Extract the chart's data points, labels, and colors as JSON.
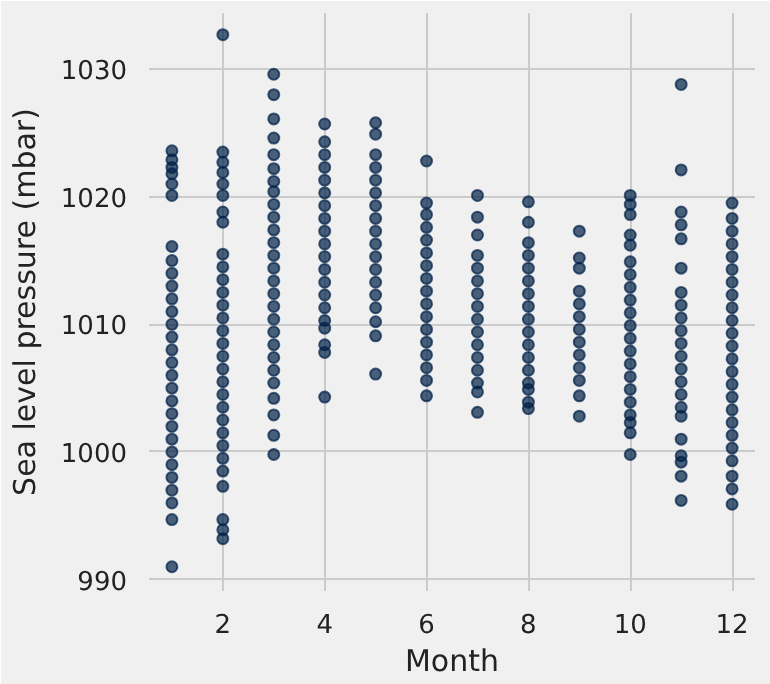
{
  "chart_data": {
    "type": "scatter",
    "xlabel": "Month",
    "ylabel": "Sea level pressure (mbar)",
    "xlim": [
      0.55,
      12.45
    ],
    "xticks": [
      2,
      4,
      6,
      8,
      10,
      12
    ],
    "ylim": [
      989.1,
      1034.4
    ],
    "yticks": [
      990,
      1000,
      1010,
      1020,
      1030
    ],
    "grid": true,
    "marker": "circle",
    "series": [
      {
        "color": "#002147",
        "x": [
          1,
          1,
          1,
          1,
          1,
          1,
          1,
          1,
          1,
          1,
          1,
          1,
          1,
          1,
          1,
          1,
          1,
          1,
          1,
          1,
          1,
          1,
          1,
          1,
          1,
          1,
          1,
          1,
          1
        ],
        "values": [
          1023.6,
          1022.9,
          1022.3,
          1021.8,
          1021.0,
          1020.1,
          1016.1,
          1015.0,
          1014.0,
          1013.0,
          1012.0,
          1011.0,
          1010.0,
          1009.0,
          1008.0,
          1007.0,
          1006.0,
          1005.0,
          1004.0,
          1003.0,
          1002.0,
          1001.0,
          1000.0,
          999.0,
          998.0,
          997.0,
          996.0,
          994.7,
          991.0
        ]
      },
      {
        "color": "#002147",
        "x": [
          2,
          2,
          2,
          2,
          2,
          2,
          2,
          2,
          2,
          2,
          2,
          2,
          2,
          2,
          2,
          2,
          2,
          2,
          2,
          2,
          2,
          2,
          2,
          2,
          2,
          2,
          2,
          2,
          2,
          2
        ],
        "values": [
          1032.7,
          1023.5,
          1022.7,
          1021.9,
          1021.0,
          1020.1,
          1018.8,
          1018.0,
          1015.5,
          1014.5,
          1013.5,
          1012.5,
          1011.5,
          1010.5,
          1009.5,
          1008.5,
          1007.5,
          1006.5,
          1005.5,
          1004.5,
          1003.5,
          1002.5,
          1001.5,
          1000.5,
          999.5,
          998.5,
          997.3,
          994.7,
          993.9,
          993.2
        ]
      },
      {
        "color": "#002147",
        "x": [
          3,
          3,
          3,
          3,
          3,
          3,
          3,
          3,
          3,
          3,
          3,
          3,
          3,
          3,
          3,
          3,
          3,
          3,
          3,
          3,
          3,
          3,
          3,
          3,
          3,
          3,
          3
        ],
        "values": [
          1029.6,
          1028.0,
          1026.1,
          1024.6,
          1023.3,
          1022.2,
          1021.2,
          1020.4,
          1019.4,
          1018.4,
          1017.4,
          1016.4,
          1015.4,
          1014.4,
          1013.4,
          1012.4,
          1011.4,
          1010.4,
          1009.4,
          1008.4,
          1007.4,
          1006.4,
          1005.4,
          1004.2,
          1002.9,
          1001.3,
          999.8
        ]
      },
      {
        "color": "#002147",
        "x": [
          4,
          4,
          4,
          4,
          4,
          4,
          4,
          4,
          4,
          4,
          4,
          4,
          4,
          4,
          4,
          4,
          4,
          4,
          4,
          4
        ],
        "values": [
          1025.7,
          1024.3,
          1023.3,
          1022.3,
          1021.3,
          1020.3,
          1019.3,
          1018.3,
          1017.3,
          1016.3,
          1015.3,
          1014.3,
          1013.3,
          1012.3,
          1011.3,
          1010.3,
          1009.7,
          1008.4,
          1007.8,
          1004.3
        ]
      },
      {
        "color": "#002147",
        "x": [
          5,
          5,
          5,
          5,
          5,
          5,
          5,
          5,
          5,
          5,
          5,
          5,
          5,
          5,
          5,
          5,
          5,
          5
        ],
        "values": [
          1025.8,
          1024.9,
          1023.3,
          1022.3,
          1021.3,
          1020.3,
          1019.3,
          1018.3,
          1017.3,
          1016.3,
          1015.3,
          1014.3,
          1013.3,
          1012.3,
          1011.3,
          1010.2,
          1009.1,
          1006.1
        ]
      },
      {
        "color": "#002147",
        "x": [
          6,
          6,
          6,
          6,
          6,
          6,
          6,
          6,
          6,
          6,
          6,
          6,
          6,
          6,
          6,
          6,
          6
        ],
        "values": [
          1022.8,
          1019.5,
          1018.6,
          1017.6,
          1016.6,
          1015.6,
          1014.6,
          1013.6,
          1012.6,
          1011.6,
          1010.6,
          1009.6,
          1008.6,
          1007.6,
          1006.6,
          1005.6,
          1004.4
        ]
      },
      {
        "color": "#002147",
        "x": [
          7,
          7,
          7,
          7,
          7,
          7,
          7,
          7,
          7,
          7,
          7,
          7,
          7,
          7,
          7,
          7
        ],
        "values": [
          1020.1,
          1018.4,
          1017.0,
          1015.4,
          1014.4,
          1013.4,
          1012.4,
          1011.4,
          1010.4,
          1009.4,
          1008.4,
          1007.4,
          1006.4,
          1005.4,
          1004.7,
          1003.1
        ]
      },
      {
        "color": "#002147",
        "x": [
          8,
          8,
          8,
          8,
          8,
          8,
          8,
          8,
          8,
          8,
          8,
          8,
          8,
          8,
          8,
          8,
          8
        ],
        "values": [
          1019.6,
          1018.0,
          1016.4,
          1015.4,
          1014.4,
          1013.4,
          1012.4,
          1011.4,
          1010.4,
          1009.4,
          1008.4,
          1007.4,
          1006.4,
          1005.4,
          1004.9,
          1003.9,
          1003.4
        ]
      },
      {
        "color": "#002147",
        "x": [
          9,
          9,
          9,
          9,
          9,
          9,
          9,
          9,
          9,
          9,
          9,
          9,
          9
        ],
        "values": [
          1017.3,
          1015.2,
          1014.4,
          1012.6,
          1011.6,
          1010.6,
          1009.6,
          1008.6,
          1007.6,
          1006.6,
          1005.6,
          1004.4,
          1002.8
        ]
      },
      {
        "color": "#002147",
        "x": [
          10,
          10,
          10,
          10,
          10,
          10,
          10,
          10,
          10,
          10,
          10,
          10,
          10,
          10,
          10,
          10,
          10,
          10,
          10,
          10,
          10
        ],
        "values": [
          1020.1,
          1019.4,
          1018.6,
          1017.0,
          1016.2,
          1014.9,
          1013.9,
          1012.9,
          1011.9,
          1010.9,
          1009.9,
          1008.9,
          1007.9,
          1006.9,
          1005.9,
          1004.9,
          1003.9,
          1002.9,
          1002.3,
          1001.5,
          999.8
        ]
      },
      {
        "color": "#002147",
        "x": [
          11,
          11,
          11,
          11,
          11,
          11,
          11,
          11,
          11,
          11,
          11,
          11,
          11,
          11,
          11,
          11,
          11,
          11,
          11,
          11,
          11,
          11
        ],
        "values": [
          1028.8,
          1022.1,
          1018.8,
          1017.8,
          1016.7,
          1014.4,
          1012.5,
          1011.5,
          1010.5,
          1009.5,
          1008.5,
          1007.5,
          1006.5,
          1005.5,
          1004.5,
          1003.5,
          1002.8,
          1001.0,
          999.7,
          999.2,
          998.1,
          996.2
        ]
      },
      {
        "color": "#002147",
        "x": [
          12,
          12,
          12,
          12,
          12,
          12,
          12,
          12,
          12,
          12,
          12,
          12,
          12,
          12,
          12,
          12,
          12,
          12,
          12,
          12,
          12,
          12,
          12,
          12
        ],
        "values": [
          1019.5,
          1018.3,
          1017.3,
          1016.3,
          1015.3,
          1014.3,
          1013.3,
          1012.3,
          1011.3,
          1010.3,
          1009.3,
          1008.3,
          1007.3,
          1006.3,
          1005.3,
          1004.3,
          1003.3,
          1002.3,
          1001.3,
          1000.3,
          999.3,
          998.1,
          997.1,
          995.9
        ]
      }
    ]
  }
}
